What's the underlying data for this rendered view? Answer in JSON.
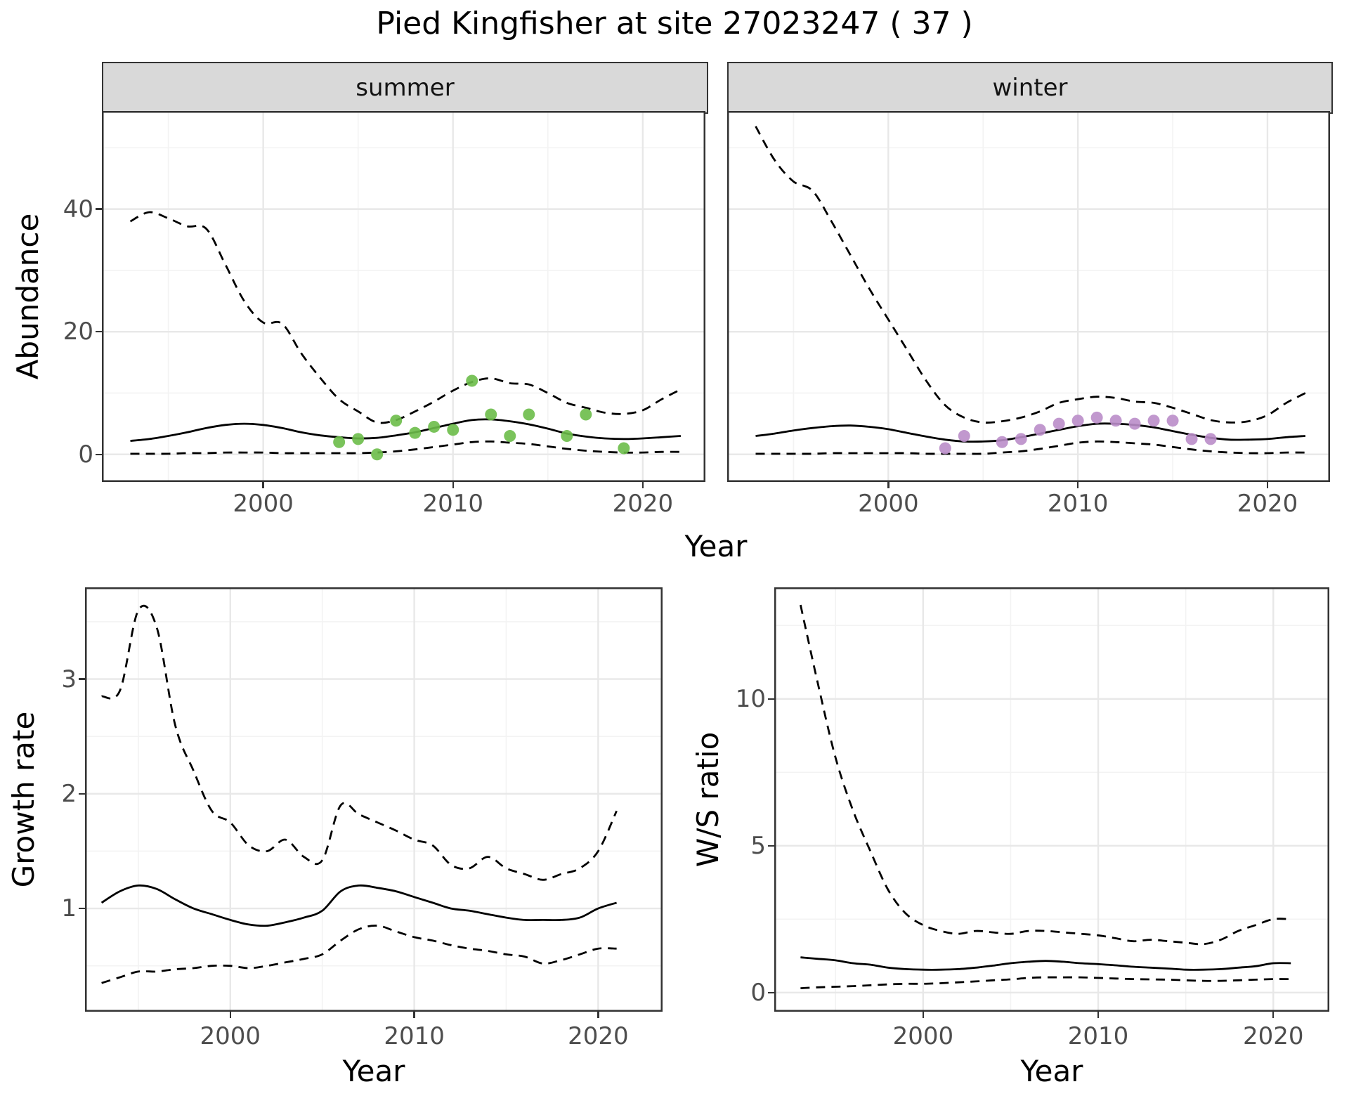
{
  "title": "Pied Kingfisher at site 27023247 ( 37 )",
  "facets": [
    {
      "label": "summer"
    },
    {
      "label": "winter"
    }
  ],
  "axes": {
    "year_label": "Year",
    "abundance_label": "Abundance",
    "growth_label": "Growth rate",
    "ws_label": "W/S ratio"
  },
  "colors": {
    "line": "#000000",
    "summer_points": "#6bbd49",
    "winter_points": "#ba8dc9",
    "strip_fill": "#d9d9d9",
    "panel_border": "#333333",
    "grid_major": "#e8e8e8",
    "grid_minor": "#f3f3f3",
    "tick_text": "#4d4d4d"
  },
  "chart_data": [
    {
      "id": "summer",
      "type": "line",
      "facet": "summer",
      "xlabel": "Year",
      "ylabel": "Abundance",
      "xlim": [
        1991.5,
        2023.3
      ],
      "ylim": [
        -4.5,
        56
      ],
      "xticks": {
        "values": [
          2000,
          2010,
          2020
        ],
        "labels": [
          "2000",
          "2010",
          "2020"
        ],
        "minor": [
          1995,
          2005,
          2015
        ]
      },
      "yticks": {
        "values": [
          0,
          20,
          40
        ],
        "labels": [
          "0",
          "20",
          "40"
        ],
        "minor": [
          10,
          30,
          50
        ]
      },
      "x": [
        1993,
        1994,
        1995,
        1996,
        1997,
        1998,
        1999,
        2000,
        2001,
        2002,
        2003,
        2004,
        2005,
        2006,
        2007,
        2008,
        2009,
        2010,
        2011,
        2012,
        2013,
        2014,
        2015,
        2016,
        2017,
        2018,
        2019,
        2020,
        2021,
        2022
      ],
      "series": [
        {
          "name": "upper ci",
          "style": "dashed",
          "values": [
            38,
            39.5,
            38.5,
            37.2,
            36.8,
            31,
            25,
            21.5,
            21.3,
            16.5,
            12.5,
            9,
            7,
            5.2,
            5.6,
            7,
            8.6,
            10.4,
            11.8,
            12.4,
            11.6,
            11.4,
            10,
            8.4,
            7.6,
            6.8,
            6.6,
            7.2,
            9,
            10.6
          ]
        },
        {
          "name": "mean",
          "style": "solid",
          "values": [
            2.2,
            2.5,
            3,
            3.6,
            4.3,
            4.8,
            5,
            4.8,
            4.3,
            3.6,
            3.1,
            2.8,
            2.6,
            2.7,
            3.1,
            3.6,
            4.3,
            5,
            5.6,
            5.7,
            5.4,
            4.9,
            4.2,
            3.4,
            2.9,
            2.6,
            2.5,
            2.6,
            2.8,
            3
          ]
        },
        {
          "name": "lower ci",
          "style": "dashed",
          "values": [
            0.1,
            0.1,
            0.1,
            0.2,
            0.2,
            0.3,
            0.3,
            0.3,
            0.2,
            0.2,
            0.2,
            0.2,
            0.2,
            0.3,
            0.5,
            0.8,
            1.2,
            1.6,
            2,
            2.1,
            1.9,
            1.7,
            1.3,
            0.9,
            0.6,
            0.4,
            0.3,
            0.3,
            0.4,
            0.4
          ]
        }
      ],
      "points": {
        "name": "observed counts",
        "color": "#6bbd49",
        "x": [
          2004,
          2005,
          2006,
          2007,
          2008,
          2009,
          2010,
          2011,
          2012,
          2013,
          2014,
          2016,
          2017,
          2019
        ],
        "y": [
          2,
          2.5,
          0,
          5.5,
          3.5,
          4.5,
          4,
          12,
          6.5,
          3,
          6.5,
          3,
          6.5,
          1
        ]
      }
    },
    {
      "id": "winter",
      "type": "line",
      "facet": "winter",
      "xlabel": "Year",
      "ylabel": "Abundance",
      "xlim": [
        1991.5,
        2023.3
      ],
      "ylim": [
        -4.5,
        56
      ],
      "xticks": {
        "values": [
          2000,
          2010,
          2020
        ],
        "labels": [
          "2000",
          "2010",
          "2020"
        ],
        "minor": [
          1995,
          2005,
          2015
        ]
      },
      "yticks": {
        "values": [
          0,
          20,
          40
        ],
        "labels": [
          "0",
          "20",
          "40"
        ],
        "minor": [
          10,
          30,
          50
        ]
      },
      "x": [
        1993,
        1994,
        1995,
        1996,
        1997,
        1998,
        1999,
        2000,
        2001,
        2002,
        2003,
        2004,
        2005,
        2006,
        2007,
        2008,
        2009,
        2010,
        2011,
        2012,
        2013,
        2014,
        2015,
        2016,
        2017,
        2018,
        2019,
        2020,
        2021,
        2022
      ],
      "series": [
        {
          "name": "upper ci",
          "style": "dashed",
          "values": [
            53.5,
            48,
            44.5,
            43,
            38,
            32.5,
            27,
            22,
            17,
            12,
            8,
            6,
            5.2,
            5.4,
            6,
            7,
            8.4,
            9,
            9.4,
            9.2,
            8.6,
            8.4,
            7.6,
            6.6,
            5.6,
            5.2,
            5.4,
            6.4,
            8.4,
            10
          ]
        },
        {
          "name": "mean",
          "style": "solid",
          "values": [
            3,
            3.4,
            3.9,
            4.3,
            4.6,
            4.7,
            4.5,
            4.1,
            3.5,
            2.9,
            2.4,
            2.1,
            2.1,
            2.3,
            2.8,
            3.4,
            4,
            4.6,
            5,
            5,
            4.8,
            4.4,
            3.8,
            3.2,
            2.7,
            2.4,
            2.4,
            2.5,
            2.8,
            3
          ]
        },
        {
          "name": "lower ci",
          "style": "dashed",
          "values": [
            0.1,
            0.1,
            0.1,
            0.1,
            0.2,
            0.2,
            0.2,
            0.2,
            0.2,
            0.1,
            0.1,
            0.1,
            0.1,
            0.3,
            0.5,
            0.9,
            1.4,
            1.9,
            2.1,
            2,
            1.8,
            1.6,
            1.2,
            0.8,
            0.5,
            0.3,
            0.2,
            0.2,
            0.3,
            0.3
          ]
        }
      ],
      "points": {
        "name": "observed counts",
        "color": "#ba8dc9",
        "x": [
          2003,
          2004,
          2006,
          2007,
          2008,
          2009,
          2010,
          2011,
          2012,
          2013,
          2014,
          2015,
          2016,
          2017
        ],
        "y": [
          1,
          3,
          2,
          2.5,
          4,
          5,
          5.5,
          6,
          5.5,
          5,
          5.5,
          5.5,
          2.5,
          2.5
        ]
      }
    },
    {
      "id": "growth",
      "type": "line",
      "xlabel": "Year",
      "ylabel": "Growth rate",
      "xlim": [
        1992.1,
        2023.5
      ],
      "ylim": [
        0.1,
        3.8
      ],
      "xticks": {
        "values": [
          2000,
          2010,
          2020
        ],
        "labels": [
          "2000",
          "2010",
          "2020"
        ],
        "minor": [
          1995,
          2005,
          2015
        ]
      },
      "yticks": {
        "values": [
          1,
          2,
          3
        ],
        "labels": [
          "1",
          "2",
          "3"
        ],
        "minor": [
          0.5,
          1.5,
          2.5,
          3.5
        ]
      },
      "x": [
        1993,
        1994,
        1995,
        1996,
        1997,
        1998,
        1999,
        2000,
        2001,
        2002,
        2003,
        2004,
        2005,
        2006,
        2007,
        2008,
        2009,
        2010,
        2011,
        2012,
        2013,
        2014,
        2015,
        2016,
        2017,
        2018,
        2019,
        2020,
        2021
      ],
      "series": [
        {
          "name": "upper ci",
          "style": "dashed",
          "values": [
            2.85,
            2.9,
            3.6,
            3.45,
            2.6,
            2.2,
            1.85,
            1.75,
            1.55,
            1.5,
            1.6,
            1.45,
            1.42,
            1.9,
            1.82,
            1.75,
            1.68,
            1.6,
            1.55,
            1.38,
            1.35,
            1.45,
            1.35,
            1.3,
            1.25,
            1.3,
            1.35,
            1.5,
            1.85
          ]
        },
        {
          "name": "mean",
          "style": "solid",
          "values": [
            1.05,
            1.15,
            1.2,
            1.17,
            1.08,
            1,
            0.95,
            0.9,
            0.86,
            0.85,
            0.88,
            0.92,
            0.98,
            1.15,
            1.2,
            1.18,
            1.15,
            1.1,
            1.05,
            1,
            0.98,
            0.95,
            0.92,
            0.9,
            0.9,
            0.9,
            0.92,
            1,
            1.05
          ]
        },
        {
          "name": "lower ci",
          "style": "dashed",
          "values": [
            0.35,
            0.4,
            0.45,
            0.45,
            0.47,
            0.48,
            0.5,
            0.5,
            0.48,
            0.5,
            0.53,
            0.56,
            0.6,
            0.72,
            0.82,
            0.85,
            0.8,
            0.75,
            0.72,
            0.68,
            0.65,
            0.63,
            0.6,
            0.58,
            0.52,
            0.55,
            0.6,
            0.65,
            0.65
          ]
        }
      ]
    },
    {
      "id": "ws",
      "type": "line",
      "xlabel": "Year",
      "ylabel": "W/S ratio",
      "xlim": [
        1991.5,
        2023.2
      ],
      "ylim": [
        -0.65,
        13.8
      ],
      "xticks": {
        "values": [
          2000,
          2010,
          2020
        ],
        "labels": [
          "2000",
          "2010",
          "2020"
        ],
        "minor": [
          1995,
          2005,
          2015
        ]
      },
      "yticks": {
        "values": [
          0,
          5,
          10
        ],
        "labels": [
          "0",
          "5",
          "10"
        ],
        "minor": [
          2.5,
          7.5,
          12.5
        ]
      },
      "x": [
        1993,
        1994,
        1995,
        1996,
        1997,
        1998,
        1999,
        2000,
        2001,
        2002,
        2003,
        2004,
        2005,
        2006,
        2007,
        2008,
        2009,
        2010,
        2011,
        2012,
        2013,
        2014,
        2015,
        2016,
        2017,
        2018,
        2019,
        2020,
        2021
      ],
      "series": [
        {
          "name": "upper ci",
          "style": "dashed",
          "values": [
            13.2,
            10.5,
            8,
            6.2,
            4.8,
            3.5,
            2.7,
            2.3,
            2.1,
            2,
            2.1,
            2.05,
            2,
            2.1,
            2.1,
            2.05,
            2,
            1.95,
            1.85,
            1.75,
            1.8,
            1.75,
            1.7,
            1.65,
            1.8,
            2.1,
            2.3,
            2.5,
            2.5
          ]
        },
        {
          "name": "mean",
          "style": "solid",
          "values": [
            1.2,
            1.15,
            1.1,
            1,
            0.95,
            0.85,
            0.8,
            0.78,
            0.78,
            0.8,
            0.85,
            0.92,
            1,
            1.05,
            1.08,
            1.05,
            1,
            0.97,
            0.93,
            0.88,
            0.85,
            0.82,
            0.78,
            0.78,
            0.8,
            0.85,
            0.9,
            1,
            1
          ]
        },
        {
          "name": "lower ci",
          "style": "dashed",
          "values": [
            0.15,
            0.18,
            0.2,
            0.22,
            0.25,
            0.28,
            0.3,
            0.3,
            0.32,
            0.35,
            0.38,
            0.42,
            0.45,
            0.5,
            0.52,
            0.52,
            0.52,
            0.5,
            0.48,
            0.46,
            0.45,
            0.44,
            0.42,
            0.4,
            0.4,
            0.42,
            0.44,
            0.46,
            0.46
          ]
        }
      ]
    }
  ]
}
